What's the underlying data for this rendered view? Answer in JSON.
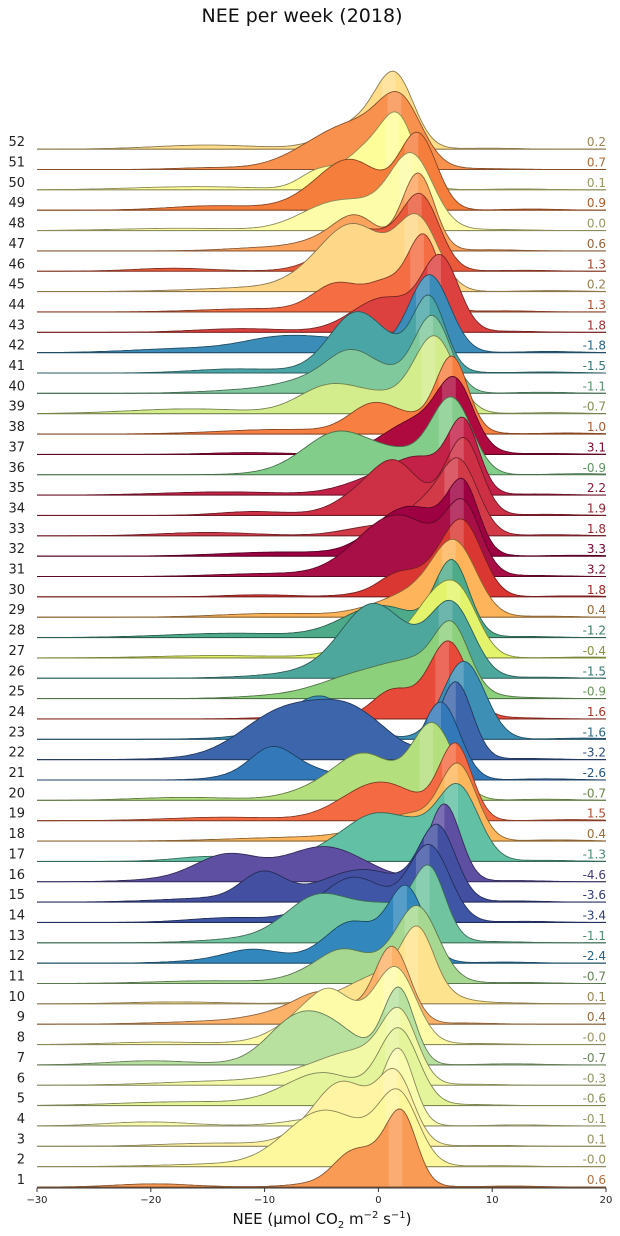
{
  "chart_data": {
    "type": "ridgeline",
    "title": "NEE per week (2018)",
    "xlabel": "NEE (μmol CO",
    "xlabel_sub": "2",
    "xlabel_mid": " m",
    "xlabel_sup1": "−2",
    "xlabel_mid2": " s",
    "xlabel_sup2": "−1",
    "xlabel_end": ")",
    "xlim": [
      -30,
      20
    ],
    "xticks": [
      -30,
      -20,
      -10,
      0,
      10,
      20
    ],
    "grid": false,
    "colormap": "Spectral (colored by weekly mean NEE)",
    "weeks": [
      {
        "week": 1,
        "mean": "0.6",
        "mode": 2.1,
        "color": "#f99a55"
      },
      {
        "week": 2,
        "mean": "-0.0",
        "mode": 1.8,
        "color": "#fdf79d"
      },
      {
        "week": 3,
        "mean": "0.1",
        "mode": 1.6,
        "color": "#fef4a4"
      },
      {
        "week": 4,
        "mean": "-0.1",
        "mode": 1.8,
        "color": "#f9fbae"
      },
      {
        "week": 5,
        "mean": "-0.6",
        "mode": 1.8,
        "color": "#e4f49a"
      },
      {
        "week": 6,
        "mean": "-0.3",
        "mode": 1.9,
        "color": "#f1f9a6"
      },
      {
        "week": 7,
        "mean": "-0.7",
        "mode": 1.8,
        "color": "#b8e1a0"
      },
      {
        "week": 8,
        "mean": "-0.0",
        "mode": 1.6,
        "color": "#fdfba8"
      },
      {
        "week": 9,
        "mean": "0.4",
        "mode": 1.2,
        "color": "#fdb26a"
      },
      {
        "week": 10,
        "mean": "0.1",
        "mode": 3.5,
        "color": "#fee38e"
      },
      {
        "week": 11,
        "mean": "-0.7",
        "mode": 3.5,
        "color": "#a6d891"
      },
      {
        "week": 12,
        "mean": "-2.4",
        "mode": 2.5,
        "color": "#3288bd"
      },
      {
        "week": 13,
        "mean": "-1.1",
        "mode": 4.5,
        "color": "#70c49f"
      },
      {
        "week": 14,
        "mean": "-3.4",
        "mode": 4.5,
        "color": "#3f55a5"
      },
      {
        "week": 15,
        "mean": "-3.6",
        "mode": 5.2,
        "color": "#4350a1"
      },
      {
        "week": 16,
        "mean": "-4.6",
        "mode": 5.8,
        "color": "#5e4fa2"
      },
      {
        "week": 17,
        "mean": "-1.3",
        "mode": 7.0,
        "color": "#62c0a4"
      },
      {
        "week": 18,
        "mean": "0.4",
        "mode": 7.0,
        "color": "#fdb65b"
      },
      {
        "week": 19,
        "mean": "1.5",
        "mode": 6.8,
        "color": "#f46b43"
      },
      {
        "week": 20,
        "mean": "-0.7",
        "mode": 4.8,
        "color": "#b3df7c"
      },
      {
        "week": 21,
        "mean": "-2.6",
        "mode": 5.5,
        "color": "#3378b8"
      },
      {
        "week": 22,
        "mean": "-3.2",
        "mode": 6.8,
        "color": "#3d65ab"
      },
      {
        "week": 23,
        "mean": "-1.6",
        "mode": 7.5,
        "color": "#3d8fb5"
      },
      {
        "week": 24,
        "mean": "1.6",
        "mode": 6.2,
        "color": "#e84a39"
      },
      {
        "week": 25,
        "mean": "-0.9",
        "mode": 6.5,
        "color": "#8dd07c"
      },
      {
        "week": 26,
        "mean": "-1.5",
        "mode": 6.5,
        "color": "#4ea79d"
      },
      {
        "week": 27,
        "mean": "-0.4",
        "mode": 7.2,
        "color": "#e3f46c"
      },
      {
        "week": 28,
        "mean": "-1.2",
        "mode": 6.5,
        "color": "#4eab8a"
      },
      {
        "week": 29,
        "mean": "0.4",
        "mode": 6.8,
        "color": "#fdb45a"
      },
      {
        "week": 30,
        "mean": "1.8",
        "mode": 7.5,
        "color": "#da3733"
      },
      {
        "week": 31,
        "mean": "3.2",
        "mode": 7.5,
        "color": "#a90f47"
      },
      {
        "week": 32,
        "mean": "3.3",
        "mode": 7.5,
        "color": "#9e0142"
      },
      {
        "week": 33,
        "mean": "1.8",
        "mode": 7.0,
        "color": "#d33a48"
      },
      {
        "week": 34,
        "mean": "1.9",
        "mode": 7.5,
        "color": "#cd2f45"
      },
      {
        "week": 35,
        "mean": "2.2",
        "mode": 7.5,
        "color": "#c42149"
      },
      {
        "week": 36,
        "mean": "-0.9",
        "mode": 6.5,
        "color": "#83cd8a"
      },
      {
        "week": 37,
        "mean": "3.1",
        "mode": 6.8,
        "color": "#ae0a40"
      },
      {
        "week": 38,
        "mean": "1.0",
        "mode": 6.5,
        "color": "#f77f42"
      },
      {
        "week": 39,
        "mean": "-0.7",
        "mode": 5.0,
        "color": "#d3ec8c"
      },
      {
        "week": 40,
        "mean": "-1.1",
        "mode": 4.8,
        "color": "#7fc99d"
      },
      {
        "week": 41,
        "mean": "-1.5",
        "mode": 4.5,
        "color": "#4aa5a7"
      },
      {
        "week": 42,
        "mean": "-1.8",
        "mode": 4.5,
        "color": "#3b8cb8"
      },
      {
        "week": 43,
        "mean": "1.8",
        "mode": 5.5,
        "color": "#dc4140"
      },
      {
        "week": 44,
        "mean": "1.3",
        "mode": 4.0,
        "color": "#f46d43"
      },
      {
        "week": 45,
        "mean": "0.2",
        "mode": 3.5,
        "color": "#fed788"
      },
      {
        "week": 46,
        "mean": "1.3",
        "mode": 3.8,
        "color": "#ea5a3a"
      },
      {
        "week": 47,
        "mean": "0.6",
        "mode": 3.5,
        "color": "#fca45e"
      },
      {
        "week": 48,
        "mean": "0.0",
        "mode": 3.0,
        "color": "#fdfca8"
      },
      {
        "week": 49,
        "mean": "0.9",
        "mode": 3.5,
        "color": "#f57e3c"
      },
      {
        "week": 50,
        "mean": "0.1",
        "mode": 1.8,
        "color": "#fdfd99"
      },
      {
        "week": 51,
        "mean": "0.7",
        "mode": 2.0,
        "color": "#f9914e"
      },
      {
        "week": 52,
        "mean": "0.2",
        "mode": 1.5,
        "color": "#fede8b"
      }
    ]
  }
}
